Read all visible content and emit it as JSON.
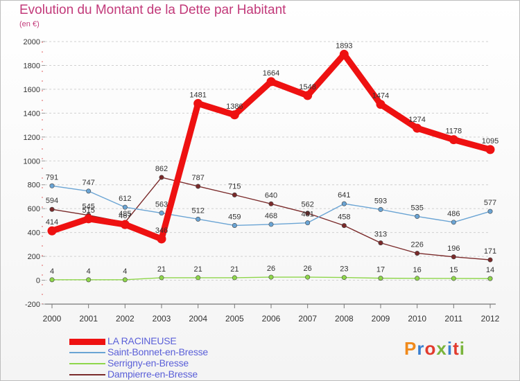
{
  "header": {
    "title": "Evolution du Montant de la Dette par Habitant",
    "subtitle": "(en €)"
  },
  "logo": {
    "text": "Proxiti",
    "colors": [
      "#f08a1c",
      "#3a7fd0",
      "#e23b2e",
      "#7ab43c",
      "#3a7fd0",
      "#e23b2e",
      "#7ab43c"
    ]
  },
  "chart_data": {
    "type": "line",
    "title": "Evolution du Montant de la Dette par Habitant",
    "subtitle": "(en €)",
    "xlabel": "",
    "ylabel": "",
    "x": [
      "2000",
      "2001",
      "2002",
      "2003",
      "2004",
      "2005",
      "2006",
      "2007",
      "2008",
      "2009",
      "2010",
      "2011",
      "2012"
    ],
    "ylim": [
      -200,
      2000
    ],
    "yticks": [
      -200,
      0,
      200,
      400,
      600,
      800,
      1000,
      1200,
      1400,
      1600,
      1800,
      2000
    ],
    "grid": "horizontal dashed",
    "legend_position": "bottom-left",
    "series": [
      {
        "name": "Dampierre-en-Bresse",
        "color": "#7a2a2a",
        "values": [
          594,
          545,
          485,
          862,
          787,
          715,
          640,
          562,
          458,
          313,
          226,
          196,
          171
        ],
        "labels": [
          "594",
          "545",
          "485",
          "862",
          "787",
          "715",
          "640",
          "562",
          "458",
          "313",
          "226",
          "196",
          "171"
        ]
      },
      {
        "name": "Saint-Bonnet-en-Bresse",
        "color": "#6aa4d4",
        "values": [
          791,
          747,
          612,
          563,
          512,
          459,
          468,
          481,
          641,
          593,
          535,
          486,
          577
        ],
        "labels": [
          "791",
          "747",
          "612",
          "563",
          "512",
          "459",
          "468",
          "481",
          "641",
          "593",
          "535",
          "486",
          "577"
        ]
      },
      {
        "name": "Serrigny-en-Bresse",
        "color": "#8ed64a",
        "values": [
          4,
          4,
          4,
          21,
          21,
          21,
          26,
          26,
          23,
          17,
          16,
          15,
          14
        ],
        "labels": [
          "4",
          "4",
          "4",
          "21",
          "21",
          "21",
          "26",
          "26",
          "23",
          "17",
          "16",
          "15",
          "14"
        ]
      },
      {
        "name": "LA RACINEUSE",
        "color": "#ee1111",
        "values": [
          414,
          515,
          467,
          346,
          1481,
          1386,
          1664,
          1548,
          1893,
          1474,
          1274,
          1178,
          1095
        ],
        "labels": [
          "414",
          "515",
          "467",
          "346",
          "1481",
          "1386",
          "1664",
          "1548",
          "1893",
          "1474",
          "1274",
          "1178",
          "1095"
        ]
      }
    ],
    "legend": [
      {
        "name": "LA RACINEUSE",
        "color": "#ee1111",
        "width": 9
      },
      {
        "name": "Saint-Bonnet-en-Bresse",
        "color": "#6aa4d4",
        "width": 2
      },
      {
        "name": "Serrigny-en-Bresse",
        "color": "#8ed64a",
        "width": 2
      },
      {
        "name": "Dampierre-en-Bresse",
        "color": "#7a2a2a",
        "width": 2
      }
    ]
  }
}
